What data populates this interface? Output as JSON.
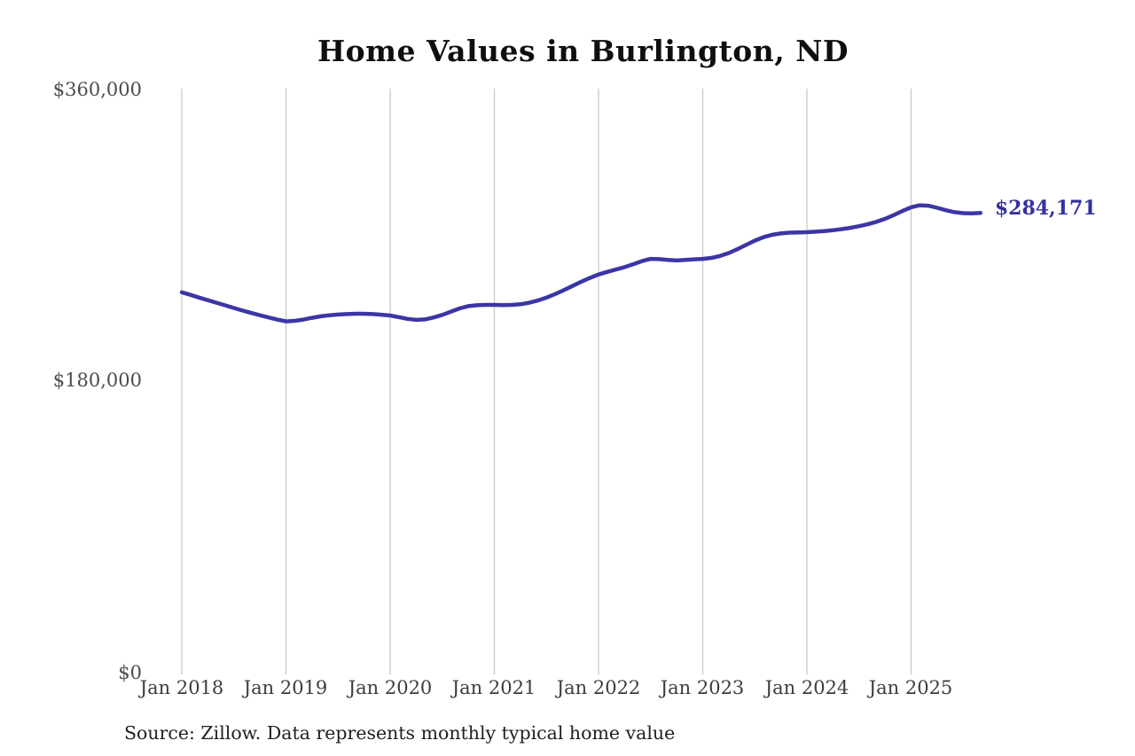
{
  "title": "Home Values in Burlington, ND",
  "source_note": "Source: Zillow. Data represents monthly typical home value",
  "colors": {
    "line": "#3b36a5",
    "end_label": "#34319e",
    "grid": "#c9c9c9",
    "axis_text": "#4c4c4c",
    "title_text": "#0f0f0f",
    "background": "#ffffff"
  },
  "chart_data": {
    "type": "line",
    "title": "Home Values in Burlington, ND",
    "xlabel": "",
    "ylabel": "",
    "ylim": [
      0,
      360000
    ],
    "grid": "vertical-only",
    "legend": "none",
    "x_ticks": [
      "Jan 2018",
      "Jan 2019",
      "Jan 2020",
      "Jan 2021",
      "Jan 2022",
      "Jan 2023",
      "Jan 2024",
      "Jan 2025"
    ],
    "y_tick_labels": [
      "$0",
      "$180,000",
      "$360,000"
    ],
    "y_tick_values": [
      0,
      180000,
      360000
    ],
    "end_value": 284171,
    "end_label": "$284,171",
    "series": [
      {
        "name": "Monthly typical home value",
        "color": "#3b36a5",
        "x": [
          "2018-01",
          "2018-02",
          "2018-03",
          "2018-04",
          "2018-05",
          "2018-06",
          "2018-07",
          "2018-08",
          "2018-09",
          "2018-10",
          "2018-11",
          "2018-12",
          "2019-01",
          "2019-02",
          "2019-03",
          "2019-04",
          "2019-05",
          "2019-06",
          "2019-07",
          "2019-08",
          "2019-09",
          "2019-10",
          "2019-11",
          "2019-12",
          "2020-01",
          "2020-02",
          "2020-03",
          "2020-04",
          "2020-05",
          "2020-06",
          "2020-07",
          "2020-08",
          "2020-09",
          "2020-10",
          "2020-11",
          "2020-12",
          "2021-01",
          "2021-02",
          "2021-03",
          "2021-04",
          "2021-05",
          "2021-06",
          "2021-07",
          "2021-08",
          "2021-09",
          "2021-10",
          "2021-11",
          "2021-12",
          "2022-01",
          "2022-02",
          "2022-03",
          "2022-04",
          "2022-05",
          "2022-06",
          "2022-07",
          "2022-08",
          "2022-09",
          "2022-10",
          "2022-11",
          "2022-12",
          "2023-01",
          "2023-02",
          "2023-03",
          "2023-04",
          "2023-05",
          "2023-06",
          "2023-07",
          "2023-08",
          "2023-09",
          "2023-10",
          "2023-11",
          "2023-12",
          "2024-01",
          "2024-02",
          "2024-03",
          "2024-04",
          "2024-05",
          "2024-06",
          "2024-07",
          "2024-08",
          "2024-09",
          "2024-10",
          "2024-11",
          "2024-12",
          "2025-01",
          "2025-02",
          "2025-03",
          "2025-04",
          "2025-05",
          "2025-06",
          "2025-07",
          "2025-08",
          "2025-09"
        ],
        "values": [
          235000,
          233400,
          231700,
          230100,
          228500,
          226900,
          225300,
          223700,
          222200,
          220800,
          219400,
          218100,
          217000,
          217300,
          218100,
          219200,
          220100,
          220800,
          221200,
          221500,
          221700,
          221700,
          221500,
          221100,
          220600,
          219600,
          218500,
          217900,
          218200,
          219400,
          221000,
          223000,
          225000,
          226400,
          227000,
          227200,
          227200,
          227100,
          227200,
          227600,
          228500,
          229900,
          231700,
          233900,
          236300,
          238900,
          241500,
          243900,
          246000,
          247600,
          249100,
          250600,
          252400,
          254300,
          255700,
          255500,
          255000,
          254700,
          255000,
          255400,
          255700,
          256300,
          257500,
          259300,
          261700,
          264400,
          267000,
          269100,
          270600,
          271400,
          271900,
          272100,
          272200,
          272500,
          272900,
          273400,
          274100,
          274900,
          275900,
          277100,
          278600,
          280500,
          282800,
          285300,
          287600,
          288900,
          288600,
          287300,
          285800,
          284600,
          284000,
          283900,
          284171
        ]
      }
    ]
  }
}
